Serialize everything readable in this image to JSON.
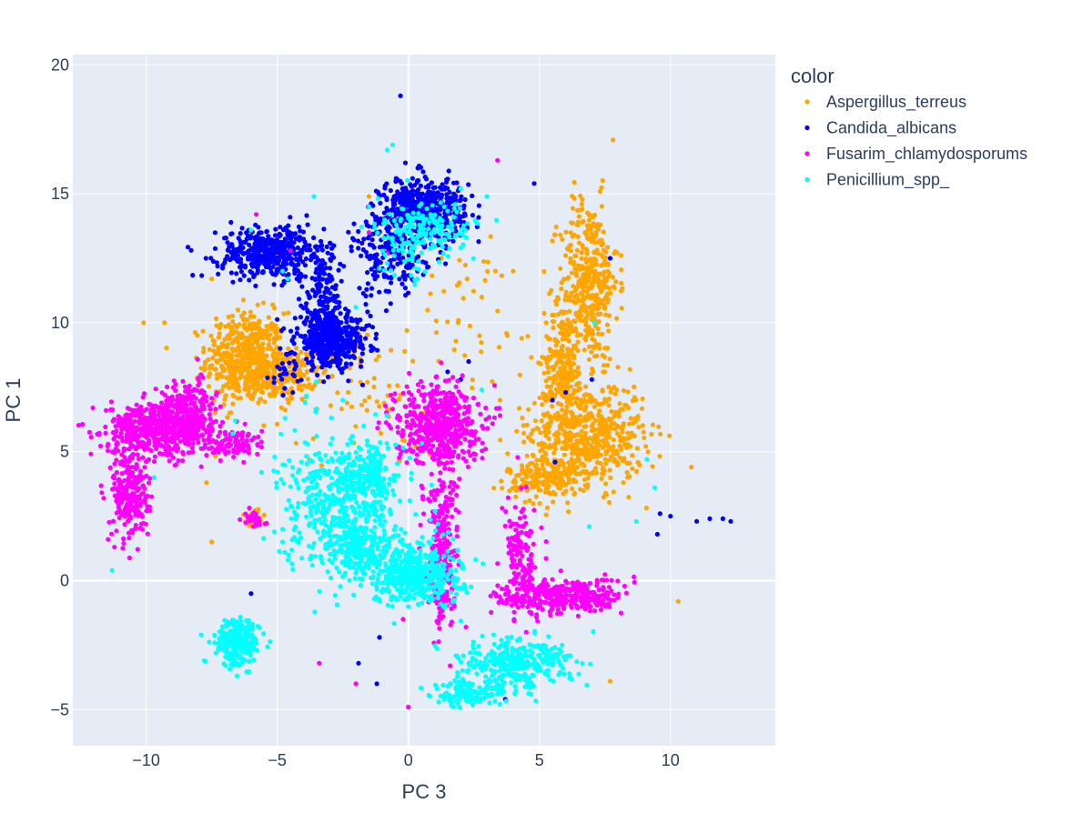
{
  "chart_data": {
    "type": "scatter",
    "title": "",
    "xlabel": "PC 3",
    "ylabel": "PC 1",
    "xlim": [
      -12.8,
      14.0
    ],
    "ylim": [
      -6.4,
      20.4
    ],
    "x_ticks": [
      -10,
      -5,
      0,
      5,
      10
    ],
    "y_ticks": [
      -5,
      0,
      5,
      10,
      15,
      20
    ],
    "x_tick_labels": [
      "−10",
      "−5",
      "0",
      "5",
      "10"
    ],
    "y_tick_labels": [
      "−5",
      "0",
      "5",
      "10",
      "15",
      "20"
    ],
    "grid": true,
    "legend_title": "color",
    "legend_position": "right",
    "series": [
      {
        "name": "Aspergillus_terreus",
        "color": "#FFA500",
        "clusters": [
          {
            "x": -6.2,
            "y": 8.6,
            "sx": 0.75,
            "sy": 0.9,
            "n": 500
          },
          {
            "x": -4.7,
            "y": 8.0,
            "sx": 0.6,
            "sy": 0.5,
            "n": 180
          },
          {
            "x": 6.9,
            "y": 11.6,
            "sx": 0.55,
            "sy": 1.6,
            "n": 380
          },
          {
            "x": 5.9,
            "y": 8.6,
            "sx": 0.35,
            "sy": 1.1,
            "n": 200
          },
          {
            "x": 6.8,
            "y": 5.7,
            "sx": 1.1,
            "sy": 1.0,
            "n": 550
          },
          {
            "x": 5.2,
            "y": 4.0,
            "sx": 0.7,
            "sy": 0.5,
            "n": 180
          },
          {
            "x": -5.9,
            "y": 2.5,
            "sx": 0.2,
            "sy": 0.15,
            "n": 25
          },
          {
            "x": -1.5,
            "y": 7.0,
            "sx": 1.5,
            "sy": 1.5,
            "n": 60
          },
          {
            "x": 2.0,
            "y": 10.2,
            "sx": 1.8,
            "sy": 2.0,
            "n": 50
          }
        ],
        "outliers": [
          [
            -10.1,
            10.0
          ],
          [
            -9.3,
            10.0
          ],
          [
            -7.5,
            11.7
          ],
          [
            -7.7,
            3.8
          ],
          [
            -7.5,
            1.5
          ],
          [
            1.3,
            13.2
          ],
          [
            4.0,
            12.0
          ],
          [
            5.8,
            12.1
          ],
          [
            10.8,
            4.4
          ],
          [
            10.3,
            -0.8
          ],
          [
            7.7,
            -3.9
          ],
          [
            -1.5,
            14.9
          ],
          [
            1.9,
            10.0
          ],
          [
            2.8,
            11.0
          ],
          [
            -0.3,
            7.2
          ],
          [
            3.5,
            7.0
          ]
        ]
      },
      {
        "name": "Candida_albicans",
        "color": "#0000FF",
        "clusters": [
          {
            "x": -5.2,
            "y": 12.7,
            "sx": 1.0,
            "sy": 0.5,
            "n": 450
          },
          {
            "x": -2.9,
            "y": 9.3,
            "sx": 0.7,
            "sy": 0.5,
            "n": 450
          },
          {
            "x": -3.3,
            "y": 10.8,
            "sx": 0.35,
            "sy": 0.9,
            "n": 150
          },
          {
            "x": 0.6,
            "y": 14.4,
            "sx": 0.8,
            "sy": 0.6,
            "n": 500
          },
          {
            "x": -0.7,
            "y": 12.6,
            "sx": 0.7,
            "sy": 0.8,
            "n": 180
          },
          {
            "x": -4.7,
            "y": 7.9,
            "sx": 0.3,
            "sy": 0.4,
            "n": 25
          }
        ],
        "outliers": [
          [
            -0.3,
            18.8
          ],
          [
            4.8,
            15.4
          ],
          [
            9.6,
            2.6
          ],
          [
            10.0,
            2.5
          ],
          [
            11.0,
            2.3
          ],
          [
            11.5,
            2.4
          ],
          [
            12.0,
            2.4
          ],
          [
            12.3,
            2.3
          ],
          [
            9.5,
            1.8
          ],
          [
            3.7,
            -4.6
          ],
          [
            -1.1,
            -2.2
          ],
          [
            -1.2,
            -4.0
          ],
          [
            -1.9,
            -3.2
          ],
          [
            -6.0,
            -0.5
          ],
          [
            5.5,
            7.0
          ],
          [
            6.0,
            7.3
          ],
          [
            7.0,
            7.8
          ],
          [
            7.7,
            12.5
          ],
          [
            5.6,
            4.6
          ],
          [
            -7.8,
            7.3
          ],
          [
            2.3,
            8.5
          ],
          [
            1.5,
            8.1
          ],
          [
            2.0,
            7.8
          ]
        ]
      },
      {
        "name": "Fusarim_chlamydosporums",
        "color": "#FF00FF",
        "clusters": [
          {
            "x": -9.5,
            "y": 5.9,
            "sx": 1.0,
            "sy": 0.5,
            "n": 550
          },
          {
            "x": -8.4,
            "y": 6.6,
            "sx": 0.5,
            "sy": 0.6,
            "n": 200
          },
          {
            "x": -10.6,
            "y": 3.4,
            "sx": 0.35,
            "sy": 0.9,
            "n": 250
          },
          {
            "x": -6.6,
            "y": 5.3,
            "sx": 0.6,
            "sy": 0.3,
            "n": 100
          },
          {
            "x": 1.1,
            "y": 6.1,
            "sx": 0.8,
            "sy": 0.8,
            "n": 500
          },
          {
            "x": 1.3,
            "y": 1.5,
            "sx": 0.3,
            "sy": 1.4,
            "n": 220
          },
          {
            "x": 1.3,
            "y": -0.7,
            "sx": 0.25,
            "sy": 0.5,
            "n": 60
          },
          {
            "x": 5.8,
            "y": -0.6,
            "sx": 1.2,
            "sy": 0.35,
            "n": 350
          },
          {
            "x": 4.3,
            "y": 1.0,
            "sx": 0.3,
            "sy": 1.0,
            "n": 120
          },
          {
            "x": -5.9,
            "y": 2.4,
            "sx": 0.2,
            "sy": 0.2,
            "n": 25
          }
        ],
        "outliers": [
          [
            3.4,
            16.3
          ],
          [
            -5.8,
            14.2
          ],
          [
            0.0,
            -4.9
          ],
          [
            -3.4,
            -3.2
          ],
          [
            -2.0,
            -4.0
          ],
          [
            4.5,
            -2.0
          ],
          [
            -0.8,
            12.7
          ],
          [
            3.5,
            6.4
          ],
          [
            -4.5,
            12.8
          ],
          [
            2.2,
            -1.8
          ],
          [
            -1.5,
            13.5
          ],
          [
            4.0,
            2.2
          ],
          [
            -0.2,
            -1.5
          ]
        ]
      },
      {
        "name": "Penicillium_spp_",
        "color": "#00FFFF",
        "clusters": [
          {
            "x": -2.6,
            "y": 2.8,
            "sx": 1.1,
            "sy": 1.3,
            "n": 500
          },
          {
            "x": -1.5,
            "y": 4.1,
            "sx": 0.5,
            "sy": 0.6,
            "n": 150
          },
          {
            "x": 0.3,
            "y": 0.3,
            "sx": 0.9,
            "sy": 0.6,
            "n": 450
          },
          {
            "x": -1.6,
            "y": 1.2,
            "sx": 0.7,
            "sy": 0.4,
            "n": 150
          },
          {
            "x": -6.5,
            "y": -2.4,
            "sx": 0.4,
            "sy": 0.45,
            "n": 250
          },
          {
            "x": 4.0,
            "y": -3.2,
            "sx": 1.1,
            "sy": 0.5,
            "n": 320
          },
          {
            "x": 2.3,
            "y": -4.4,
            "sx": 0.7,
            "sy": 0.25,
            "n": 120
          },
          {
            "x": 0.9,
            "y": 13.6,
            "sx": 0.8,
            "sy": 0.5,
            "n": 120
          },
          {
            "x": -0.2,
            "y": 13.0,
            "sx": 0.5,
            "sy": 0.7,
            "n": 60
          }
        ],
        "outliers": [
          [
            -0.8,
            16.7
          ],
          [
            -0.6,
            16.9
          ],
          [
            -11.3,
            0.4
          ],
          [
            -7.9,
            -2.1
          ],
          [
            -3.5,
            7.7
          ],
          [
            -2.5,
            7.0
          ],
          [
            -1.7,
            6.0
          ],
          [
            -2.0,
            10.6
          ],
          [
            -4.8,
            12.0
          ],
          [
            -4.6,
            11.7
          ],
          [
            6.9,
            2.1
          ],
          [
            8.7,
            2.3
          ],
          [
            9.4,
            3.6
          ],
          [
            9.1,
            4.7
          ],
          [
            7.1,
            10.0
          ],
          [
            3.0,
            14.9
          ],
          [
            -3.6,
            14.9
          ],
          [
            -1.5,
            14.5
          ],
          [
            2.0,
            15.2
          ],
          [
            -6.6,
            6.2
          ],
          [
            -6.7,
            5.7
          ],
          [
            -9.7,
            4.0
          ],
          [
            -5.6,
            4.2
          ],
          [
            -5.1,
            4.8
          ],
          [
            -3.5,
            5.6
          ],
          [
            -4.7,
            6.3
          ],
          [
            2.8,
            7.4
          ],
          [
            -6.0,
            13.6
          ],
          [
            2.0,
            12.9
          ]
        ]
      }
    ]
  }
}
